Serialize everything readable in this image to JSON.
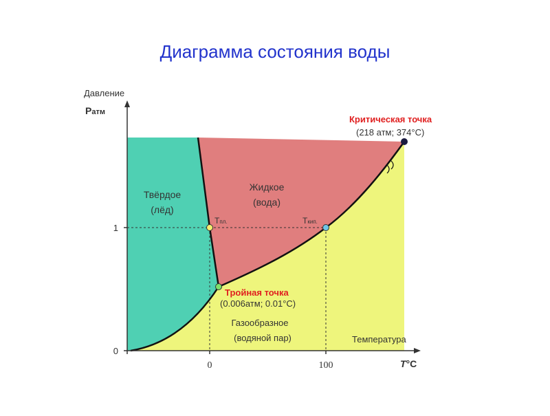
{
  "title": "Диаграмма состояния воды",
  "axes": {
    "y_label": "Давление",
    "y_symbol": "P",
    "y_symbol_sub": "атм",
    "x_label": "Температура",
    "x_symbol": "T",
    "x_symbol_unit": "°C",
    "y_ticks": [
      "1",
      "0"
    ],
    "x_ticks": [
      "0",
      "100"
    ]
  },
  "regions": {
    "solid": {
      "name": "Твёрдое",
      "note": "(лёд)"
    },
    "liquid": {
      "name": "Жидкое",
      "note": "(вода)"
    },
    "gas": {
      "name": "Газообразное",
      "note": "(водяной пар)"
    }
  },
  "points": {
    "melting": {
      "symbol": "T",
      "sub": "пл."
    },
    "boiling": {
      "symbol": "T",
      "sub": "кип."
    },
    "triple": {
      "name": "Тройная точка",
      "note": "(0.006атм; 0.01°С)"
    },
    "critical": {
      "name": "Критическая точка",
      "note": "(218 атм; 374°С)"
    }
  }
}
